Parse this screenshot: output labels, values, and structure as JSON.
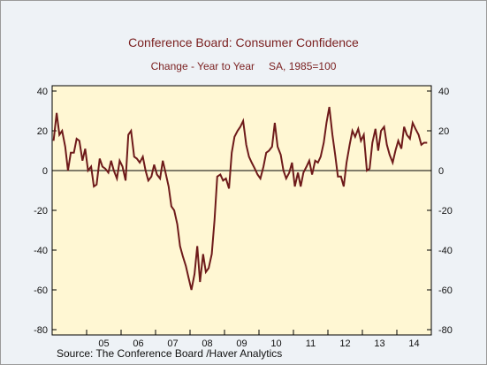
{
  "title": "Conference Board: Consumer Confidence",
  "subtitle_left": "Change - Year to Year",
  "subtitle_right": "SA, 1985=100",
  "source": "Source:  The Conference Board /Haver Analytics",
  "colors": {
    "plot_bg": "#fff7d3",
    "line": "#6e1a1a",
    "zero_line": "#000000"
  },
  "chart_data": {
    "type": "line",
    "title": "Conference Board: Consumer Confidence",
    "subtitle": "Change - Year to Year    SA, 1985=100",
    "xlabel": "",
    "ylabel": "",
    "ylim": [
      -80,
      40
    ],
    "yticks": [
      40,
      20,
      0,
      -20,
      -40,
      -60,
      -80
    ],
    "xlim": [
      2004.0,
      2015.0
    ],
    "xtick_labels": [
      "05",
      "06",
      "07",
      "08",
      "09",
      "10",
      "11",
      "12",
      "13",
      "14"
    ],
    "zero_line": true,
    "grid": false,
    "legend": "none",
    "series": [
      {
        "x": [
          2004.04,
          2004.13,
          2004.21,
          2004.29,
          2004.38,
          2004.46,
          2004.54,
          2004.63,
          2004.71,
          2004.79,
          2004.88,
          2004.96,
          2005.04,
          2005.13,
          2005.21,
          2005.29,
          2005.38,
          2005.46,
          2005.54,
          2005.63,
          2005.71,
          2005.79,
          2005.88,
          2005.96,
          2006.04,
          2006.13,
          2006.21,
          2006.29,
          2006.38,
          2006.46,
          2006.54,
          2006.63,
          2006.71,
          2006.79,
          2006.88,
          2006.96,
          2007.04,
          2007.13,
          2007.21,
          2007.29,
          2007.38,
          2007.46,
          2007.54,
          2007.63,
          2007.71,
          2007.79,
          2007.88,
          2007.96,
          2008.04,
          2008.13,
          2008.21,
          2008.29,
          2008.38,
          2008.46,
          2008.54,
          2008.63,
          2008.71,
          2008.79,
          2008.88,
          2008.96,
          2009.04,
          2009.13,
          2009.21,
          2009.29,
          2009.38,
          2009.46,
          2009.54,
          2009.63,
          2009.71,
          2009.79,
          2009.88,
          2009.96,
          2010.04,
          2010.13,
          2010.21,
          2010.29,
          2010.38,
          2010.46,
          2010.54,
          2010.63,
          2010.71,
          2010.79,
          2010.88,
          2010.96,
          2011.04,
          2011.13,
          2011.21,
          2011.29,
          2011.38,
          2011.46,
          2011.54,
          2011.63,
          2011.71,
          2011.79,
          2011.88,
          2011.96,
          2012.04,
          2012.13,
          2012.21,
          2012.29,
          2012.38,
          2012.46,
          2012.54,
          2012.63,
          2012.71,
          2012.79,
          2012.88,
          2012.96,
          2013.04,
          2013.13,
          2013.21,
          2013.29,
          2013.38,
          2013.46,
          2013.54,
          2013.63,
          2013.71,
          2013.79,
          2013.88,
          2013.96,
          2014.04,
          2014.13,
          2014.21,
          2014.29,
          2014.38,
          2014.46,
          2014.54,
          2014.63,
          2014.71,
          2014.79,
          2014.88
        ],
        "values": [
          15,
          29,
          18,
          20,
          12,
          0,
          9,
          9,
          16,
          15,
          5,
          11,
          0,
          2,
          -8,
          -7,
          6,
          2,
          1,
          -1,
          5,
          0,
          -4,
          5,
          2,
          -5,
          18,
          20,
          7,
          6,
          4,
          7,
          0,
          -5,
          -3,
          3,
          -2,
          -4,
          5,
          -1,
          -8,
          -18,
          -20,
          -27,
          -38,
          -43,
          -48,
          -54,
          -60,
          -52,
          -38,
          -56,
          -42,
          -51,
          -49,
          -42,
          -25,
          -3,
          -2,
          -5,
          -4,
          -9,
          9,
          17,
          20,
          22,
          25,
          13,
          7,
          4,
          1,
          -2,
          -4,
          2,
          9,
          10,
          12,
          24,
          12,
          8,
          0,
          -4,
          -1,
          4,
          -8,
          -1,
          -8,
          -1,
          2,
          5,
          -2,
          5,
          4,
          7,
          14,
          24,
          32,
          18,
          8,
          -3,
          -3,
          -8,
          4,
          13,
          20,
          17,
          21,
          15,
          18,
          0,
          1,
          14,
          21,
          10,
          20,
          22,
          13,
          8,
          4,
          10,
          15,
          11,
          22,
          18,
          16,
          24,
          21,
          18,
          13,
          14,
          14
        ]
      }
    ]
  }
}
